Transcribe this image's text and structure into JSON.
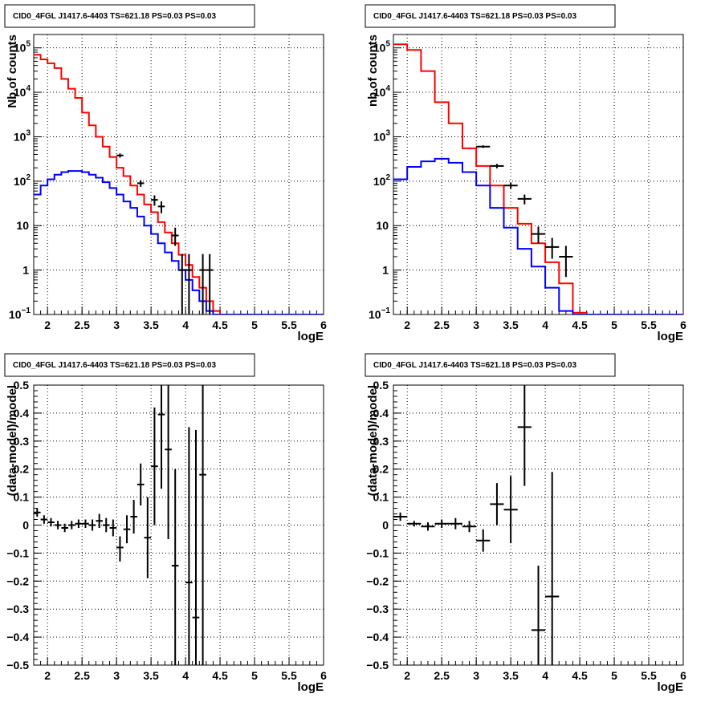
{
  "chart_data": [
    {
      "type": "line",
      "title": "CID0_4FGL J1417.6-4403 TS=621.18 PS=0.03 PS=0.03",
      "xlabel": "logE",
      "ylabel": "Nb of counts",
      "xlim": [
        1.8,
        6.0
      ],
      "ylim": [
        0.1,
        200000
      ],
      "yscale": "log",
      "grid": true,
      "x_ticks": [
        "2",
        "2.5",
        "3",
        "3.5",
        "4",
        "4.5",
        "5",
        "5.5",
        "6"
      ],
      "y_ticks": [
        {
          "value": 0.1,
          "base": "10",
          "exp": "−1"
        },
        {
          "value": 1,
          "base": "1",
          "exp": ""
        },
        {
          "value": 10,
          "base": "10",
          "exp": ""
        },
        {
          "value": 100,
          "base": "10",
          "exp": "2"
        },
        {
          "value": 1000,
          "base": "10",
          "exp": "3"
        },
        {
          "value": 10000,
          "base": "10",
          "exp": "4"
        },
        {
          "value": 100000,
          "base": "10",
          "exp": "5"
        }
      ],
      "bin_edges": [
        1.8,
        1.9,
        2.0,
        2.1,
        2.2,
        2.3,
        2.4,
        2.5,
        2.6,
        2.7,
        2.8,
        2.9,
        3.0,
        3.1,
        3.2,
        3.3,
        3.4,
        3.5,
        3.6,
        3.7,
        3.8,
        3.9,
        4.0,
        4.1,
        4.2,
        4.3,
        4.4,
        4.5,
        4.6,
        4.7,
        4.8,
        4.9,
        5.0,
        5.1,
        5.2,
        5.3,
        5.4,
        5.5,
        5.6,
        5.7,
        5.8,
        5.9,
        6.0
      ],
      "series": [
        {
          "color": "#ff0000",
          "values": [
            70000,
            55000,
            45000,
            35000,
            20000,
            12000,
            7500,
            3500,
            1800,
            1000,
            600,
            350,
            200,
            130,
            80,
            50,
            30,
            20,
            12,
            7,
            4,
            2.2,
            1.3,
            0.7,
            0.4,
            0.2,
            0.12,
            0.1,
            0.1,
            0.1,
            0.1,
            0.1,
            0.1,
            0.1,
            0.1,
            0.1,
            0.1,
            0.1,
            0.1,
            0.1,
            0.1,
            0.1
          ]
        },
        {
          "color": "#0000ff",
          "values": [
            50,
            80,
            110,
            140,
            160,
            170,
            170,
            160,
            140,
            120,
            95,
            70,
            50,
            35,
            25,
            16,
            10,
            6.5,
            4,
            2.5,
            1.6,
            1.0,
            0.6,
            0.35,
            0.2,
            0.12,
            0.1,
            0.1,
            0.1,
            0.1,
            0.1,
            0.1,
            0.1,
            0.1,
            0.1,
            0.1,
            0.1,
            0.1,
            0.1,
            0.1,
            0.1,
            0.1
          ]
        }
      ],
      "data_points": [
        {
          "x": 3.05,
          "y": 380,
          "xerr": 0.05,
          "ylo": 340,
          "yhi": 420
        },
        {
          "x": 3.35,
          "y": 90,
          "xerr": 0.05,
          "ylo": 75,
          "yhi": 105
        },
        {
          "x": 3.55,
          "y": 38,
          "xerr": 0.05,
          "ylo": 28,
          "yhi": 48
        },
        {
          "x": 3.65,
          "y": 27,
          "xerr": 0.05,
          "ylo": 19,
          "yhi": 35
        },
        {
          "x": 3.85,
          "y": 6,
          "xerr": 0.05,
          "ylo": 3.5,
          "yhi": 9
        },
        {
          "x": 3.95,
          "y": 1,
          "xerr": 0.05,
          "ylo": 0.1,
          "yhi": 2.3
        },
        {
          "x": 4.05,
          "y": 1,
          "xerr": 0.05,
          "ylo": 0.1,
          "yhi": 2.3
        },
        {
          "x": 4.25,
          "y": 1,
          "xerr": 0.05,
          "ylo": 0.1,
          "yhi": 2.3
        },
        {
          "x": 4.35,
          "y": 1,
          "xerr": 0.05,
          "ylo": 0.1,
          "yhi": 2.3
        }
      ]
    },
    {
      "type": "line",
      "title": "CID0_4FGL J1417.6-4403 TS=621.18 PS=0.03 PS=0.03",
      "xlabel": "logE",
      "ylabel": "nb of counts",
      "xlim": [
        1.8,
        6.0
      ],
      "ylim": [
        0.1,
        200000
      ],
      "yscale": "log",
      "grid": true,
      "x_ticks": [
        "2",
        "2.5",
        "3",
        "3.5",
        "4",
        "4.5",
        "5",
        "5.5",
        "6"
      ],
      "y_ticks": [
        {
          "value": 0.1,
          "base": "10",
          "exp": "−1"
        },
        {
          "value": 1,
          "base": "1",
          "exp": ""
        },
        {
          "value": 10,
          "base": "10",
          "exp": ""
        },
        {
          "value": 100,
          "base": "10",
          "exp": "2"
        },
        {
          "value": 1000,
          "base": "10",
          "exp": "3"
        },
        {
          "value": 10000,
          "base": "10",
          "exp": "4"
        },
        {
          "value": 100000,
          "base": "10",
          "exp": "5"
        }
      ],
      "bin_edges": [
        1.8,
        2.0,
        2.2,
        2.4,
        2.6,
        2.8,
        3.0,
        3.2,
        3.4,
        3.6,
        3.8,
        4.0,
        4.2,
        4.4,
        4.6,
        4.8,
        5.0,
        5.2,
        5.4,
        5.6,
        5.8,
        6.0
      ],
      "series": [
        {
          "color": "#ff0000",
          "values": [
            120000,
            90000,
            30000,
            6000,
            2000,
            550,
            220,
            80,
            25,
            11,
            4,
            1.5,
            0.5,
            0.11,
            0.1,
            0.1,
            0.1,
            0.1,
            0.1,
            0.1,
            0.1
          ]
        },
        {
          "color": "#0000ff",
          "values": [
            110,
            210,
            280,
            320,
            260,
            160,
            80,
            25,
            9,
            3,
            1.2,
            0.4,
            0.12,
            0.1,
            0.1,
            0.1,
            0.1,
            0.1,
            0.1,
            0.1,
            0.1
          ]
        }
      ],
      "data_points": [
        {
          "x": 3.1,
          "y": 600,
          "xerr": 0.1,
          "ylo": 560,
          "yhi": 640
        },
        {
          "x": 3.3,
          "y": 220,
          "xerr": 0.1,
          "ylo": 195,
          "yhi": 245
        },
        {
          "x": 3.5,
          "y": 80,
          "xerr": 0.1,
          "ylo": 68,
          "yhi": 92
        },
        {
          "x": 3.7,
          "y": 40,
          "xerr": 0.1,
          "ylo": 30,
          "yhi": 50
        },
        {
          "x": 3.9,
          "y": 6.5,
          "xerr": 0.1,
          "ylo": 4,
          "yhi": 9.5
        },
        {
          "x": 4.1,
          "y": 3.3,
          "xerr": 0.1,
          "ylo": 1.8,
          "yhi": 5.3
        },
        {
          "x": 4.3,
          "y": 2,
          "xerr": 0.1,
          "ylo": 0.7,
          "yhi": 3.5
        }
      ]
    },
    {
      "type": "scatter",
      "title": "CID0_4FGL J1417.6-4403 TS=621.18 PS=0.03 PS=0.03",
      "xlabel": "logE",
      "ylabel": "(data-model)/model",
      "xlim": [
        1.8,
        6.0
      ],
      "ylim": [
        -0.5,
        0.5
      ],
      "grid": true,
      "x_ticks": [
        "2",
        "2.5",
        "3",
        "3.5",
        "4",
        "4.5",
        "5",
        "5.5",
        "6"
      ],
      "y_ticks": [
        "−0.5",
        "−0.4",
        "−0.3",
        "−0.2",
        "−0.1",
        "0",
        "0.1",
        "0.2",
        "0.3",
        "0.4",
        "0.5"
      ],
      "data_points": [
        {
          "x": 1.85,
          "y": 0.045,
          "xerr": 0.05,
          "ylo": 0.03,
          "yhi": 0.06
        },
        {
          "x": 1.95,
          "y": 0.02,
          "xerr": 0.05,
          "ylo": 0.005,
          "yhi": 0.035
        },
        {
          "x": 2.05,
          "y": 0.01,
          "xerr": 0.05,
          "ylo": -0.005,
          "yhi": 0.025
        },
        {
          "x": 2.15,
          "y": 0.0,
          "xerr": 0.05,
          "ylo": -0.015,
          "yhi": 0.015
        },
        {
          "x": 2.25,
          "y": -0.01,
          "xerr": 0.05,
          "ylo": -0.025,
          "yhi": 0.005
        },
        {
          "x": 2.35,
          "y": 0.0,
          "xerr": 0.05,
          "ylo": -0.015,
          "yhi": 0.015
        },
        {
          "x": 2.45,
          "y": 0.005,
          "xerr": 0.05,
          "ylo": -0.01,
          "yhi": 0.02
        },
        {
          "x": 2.55,
          "y": 0.005,
          "xerr": 0.05,
          "ylo": -0.01,
          "yhi": 0.02
        },
        {
          "x": 2.65,
          "y": 0.0,
          "xerr": 0.05,
          "ylo": -0.02,
          "yhi": 0.02
        },
        {
          "x": 2.75,
          "y": 0.015,
          "xerr": 0.05,
          "ylo": -0.01,
          "yhi": 0.04
        },
        {
          "x": 2.85,
          "y": 0.0,
          "xerr": 0.05,
          "ylo": -0.025,
          "yhi": 0.025
        },
        {
          "x": 2.95,
          "y": -0.01,
          "xerr": 0.05,
          "ylo": -0.04,
          "yhi": 0.02
        },
        {
          "x": 3.05,
          "y": -0.08,
          "xerr": 0.05,
          "ylo": -0.13,
          "yhi": -0.04
        },
        {
          "x": 3.15,
          "y": -0.015,
          "xerr": 0.05,
          "ylo": -0.065,
          "yhi": 0.035
        },
        {
          "x": 3.25,
          "y": 0.03,
          "xerr": 0.05,
          "ylo": -0.03,
          "yhi": 0.09
        },
        {
          "x": 3.35,
          "y": 0.145,
          "xerr": 0.05,
          "ylo": 0.07,
          "yhi": 0.22
        },
        {
          "x": 3.45,
          "y": -0.045,
          "xerr": 0.05,
          "ylo": -0.19,
          "yhi": 0.1
        },
        {
          "x": 3.55,
          "y": 0.21,
          "xerr": 0.05,
          "ylo": 0.0,
          "yhi": 0.42
        },
        {
          "x": 3.65,
          "y": 0.395,
          "xerr": 0.05,
          "ylo": 0.13,
          "yhi": 0.5
        },
        {
          "x": 3.75,
          "y": 0.27,
          "xerr": 0.05,
          "ylo": -0.05,
          "yhi": 0.5
        },
        {
          "x": 3.85,
          "y": -0.145,
          "xerr": 0.05,
          "ylo": -0.5,
          "yhi": 0.2
        },
        {
          "x": 4.05,
          "y": -0.205,
          "xerr": 0.05,
          "ylo": -0.5,
          "yhi": 0.35
        },
        {
          "x": 4.15,
          "y": -0.33,
          "xerr": 0.05,
          "ylo": -0.5,
          "yhi": 0.34
        },
        {
          "x": 4.25,
          "y": 0.18,
          "xerr": 0.05,
          "ylo": -0.5,
          "yhi": 0.5
        }
      ]
    },
    {
      "type": "scatter",
      "title": "CID0_4FGL J1417.6-4403 TS=621.18 PS=0.03 PS=0.03",
      "xlabel": "logE",
      "ylabel": "(data-model)/model",
      "xlim": [
        1.8,
        6.0
      ],
      "ylim": [
        -0.5,
        0.5
      ],
      "grid": true,
      "x_ticks": [
        "2",
        "2.5",
        "3",
        "3.5",
        "4",
        "4.5",
        "5",
        "5.5",
        "6"
      ],
      "y_ticks": [
        "−0.5",
        "−0.4",
        "−0.3",
        "−0.2",
        "−0.1",
        "0",
        "0.1",
        "0.2",
        "0.3",
        "0.4",
        "0.5"
      ],
      "data_points": [
        {
          "x": 1.9,
          "y": 0.03,
          "xerr": 0.1,
          "ylo": 0.015,
          "yhi": 0.045
        },
        {
          "x": 2.1,
          "y": 0.005,
          "xerr": 0.1,
          "ylo": -0.005,
          "yhi": 0.015
        },
        {
          "x": 2.3,
          "y": -0.005,
          "xerr": 0.1,
          "ylo": -0.02,
          "yhi": 0.01
        },
        {
          "x": 2.5,
          "y": 0.005,
          "xerr": 0.1,
          "ylo": -0.01,
          "yhi": 0.02
        },
        {
          "x": 2.7,
          "y": 0.005,
          "xerr": 0.1,
          "ylo": -0.015,
          "yhi": 0.025
        },
        {
          "x": 2.9,
          "y": -0.005,
          "xerr": 0.1,
          "ylo": -0.025,
          "yhi": 0.015
        },
        {
          "x": 3.1,
          "y": -0.055,
          "xerr": 0.1,
          "ylo": -0.095,
          "yhi": -0.015
        },
        {
          "x": 3.3,
          "y": 0.075,
          "xerr": 0.1,
          "ylo": 0.0,
          "yhi": 0.15
        },
        {
          "x": 3.5,
          "y": 0.055,
          "xerr": 0.1,
          "ylo": -0.065,
          "yhi": 0.175
        },
        {
          "x": 3.7,
          "y": 0.35,
          "xerr": 0.1,
          "ylo": 0.14,
          "yhi": 0.5
        },
        {
          "x": 3.9,
          "y": -0.375,
          "xerr": 0.1,
          "ylo": -0.5,
          "yhi": -0.145
        },
        {
          "x": 4.1,
          "y": -0.255,
          "xerr": 0.1,
          "ylo": -0.5,
          "yhi": 0.19
        }
      ]
    }
  ]
}
